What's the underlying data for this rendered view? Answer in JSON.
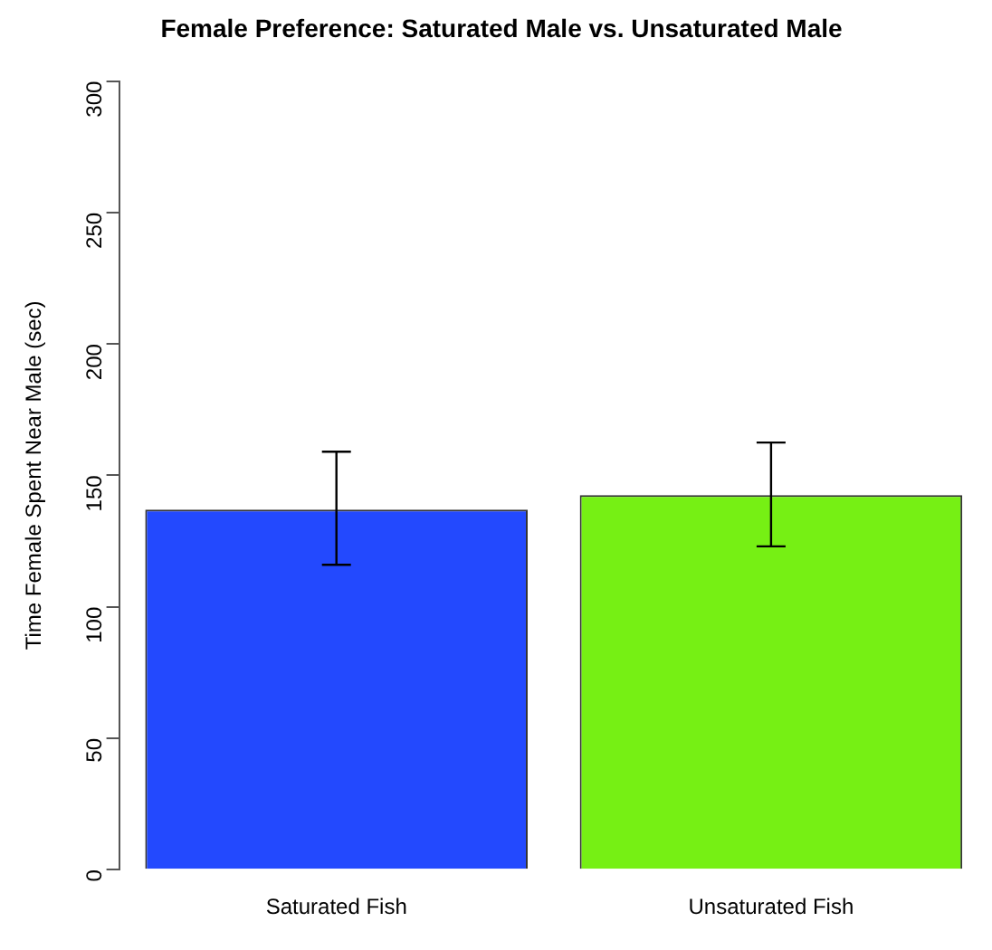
{
  "chart_data": {
    "type": "bar",
    "title": "Female Preference: Saturated Male vs. Unsaturated Male",
    "ylabel": "Time Female Spent Near Male (sec)",
    "categories": [
      "Saturated Fish",
      "Unsaturated Fish"
    ],
    "values": [
      137,
      142.5
    ],
    "colors": [
      "#2349fe",
      "#76f014"
    ],
    "errors": [
      [
        116,
        159
      ],
      [
        123,
        162.5
      ]
    ],
    "ylim": [
      0,
      300
    ],
    "yticks": [
      0,
      50,
      100,
      150,
      200,
      250,
      300
    ],
    "grid": false,
    "legend": false
  }
}
